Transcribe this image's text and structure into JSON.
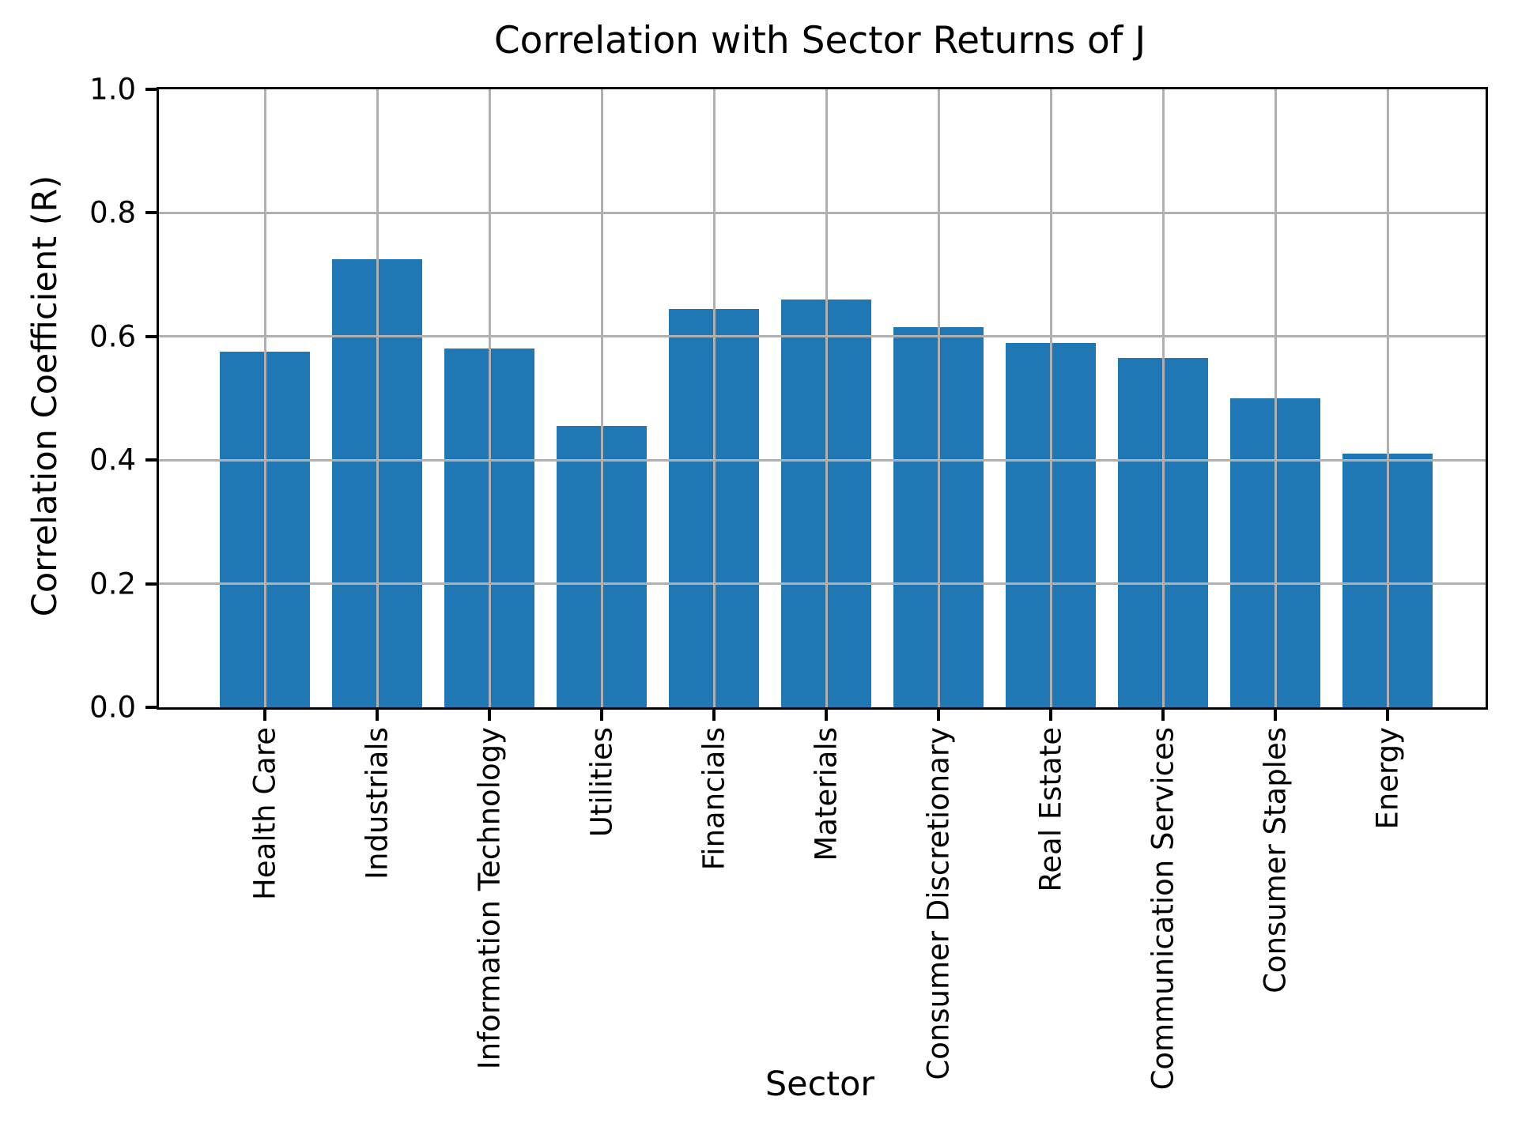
{
  "chart_data": {
    "type": "bar",
    "title": "Correlation with Sector Returns of J",
    "xlabel": "Sector",
    "ylabel": "Correlation Coefficient (R)",
    "categories": [
      "Health Care",
      "Industrials",
      "Information Technology",
      "Utilities",
      "Financials",
      "Materials",
      "Consumer Discretionary",
      "Real Estate",
      "Communication Services",
      "Consumer Staples",
      "Energy"
    ],
    "values": [
      0.575,
      0.725,
      0.58,
      0.455,
      0.645,
      0.66,
      0.615,
      0.59,
      0.565,
      0.5,
      0.41
    ],
    "ylim": [
      0.0,
      1.0
    ],
    "yticks": [
      "0.0",
      "0.2",
      "0.4",
      "0.6",
      "0.8",
      "1.0"
    ],
    "grid": true,
    "legend": null,
    "bar_color": "#1f77b4",
    "grid_color": "#b0b0b0",
    "axis_color": "#000000"
  }
}
